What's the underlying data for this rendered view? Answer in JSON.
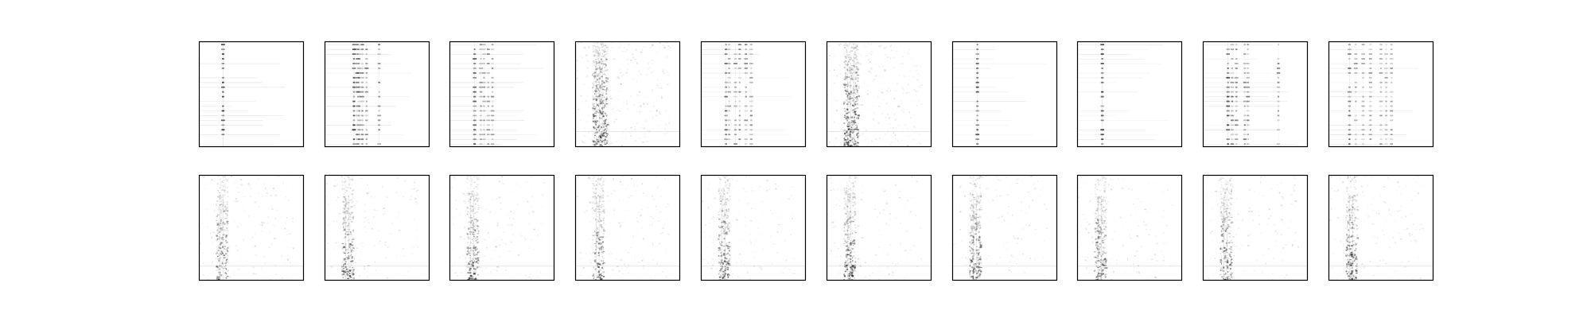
{
  "figure": {
    "rows": 2,
    "cols": 10,
    "background": "#ffffff",
    "frame_color": "#000000",
    "ink_color": "#000000",
    "top_row": [
      {
        "style": "sparse",
        "columns": [
          0.23
        ],
        "intensity": 0.9
      },
      {
        "style": "sparse",
        "columns": [
          0.28,
          0.31,
          0.33,
          0.36,
          0.4,
          0.52
        ],
        "intensity": 0.85
      },
      {
        "style": "sparse",
        "columns": [
          0.24,
          0.3,
          0.33,
          0.37,
          0.41
        ],
        "intensity": 0.7
      },
      {
        "style": "dense",
        "columns": [
          0.2,
          0.23,
          0.26
        ],
        "intensity": 0.6
      },
      {
        "style": "sparse",
        "columns": [
          0.24,
          0.27,
          0.33,
          0.37,
          0.43,
          0.48
        ],
        "intensity": 0.7
      },
      {
        "style": "dense",
        "columns": [
          0.2,
          0.23,
          0.26
        ],
        "intensity": 0.6
      },
      {
        "style": "sparse",
        "columns": [
          0.24
        ],
        "intensity": 0.75
      },
      {
        "style": "sparse",
        "columns": [
          0.24
        ],
        "intensity": 0.8
      },
      {
        "style": "sparse",
        "columns": [
          0.24,
          0.28,
          0.32,
          0.4,
          0.43,
          0.72
        ],
        "intensity": 0.8
      },
      {
        "style": "sparse",
        "columns": [
          0.2,
          0.26,
          0.33,
          0.4,
          0.5,
          0.55,
          0.6
        ],
        "intensity": 0.6
      }
    ],
    "bottom_row": [
      {
        "style": "spectral",
        "columns": [
          0.2,
          0.23
        ],
        "intensity": 0.6
      },
      {
        "style": "spectral",
        "columns": [
          0.2,
          0.23
        ],
        "intensity": 0.6
      },
      {
        "style": "spectral",
        "columns": [
          0.2,
          0.23
        ],
        "intensity": 0.6
      },
      {
        "style": "spectral",
        "columns": [
          0.2,
          0.23
        ],
        "intensity": 0.6
      },
      {
        "style": "spectral",
        "columns": [
          0.2,
          0.23
        ],
        "intensity": 0.6
      },
      {
        "style": "spectral",
        "columns": [
          0.2,
          0.23
        ],
        "intensity": 0.6
      },
      {
        "style": "spectral",
        "columns": [
          0.2,
          0.23
        ],
        "intensity": 0.6
      },
      {
        "style": "spectral",
        "columns": [
          0.2,
          0.23
        ],
        "intensity": 0.6
      },
      {
        "style": "spectral",
        "columns": [
          0.2,
          0.23
        ],
        "intensity": 0.6
      },
      {
        "style": "spectral",
        "columns": [
          0.2,
          0.23
        ],
        "intensity": 0.6
      }
    ]
  }
}
